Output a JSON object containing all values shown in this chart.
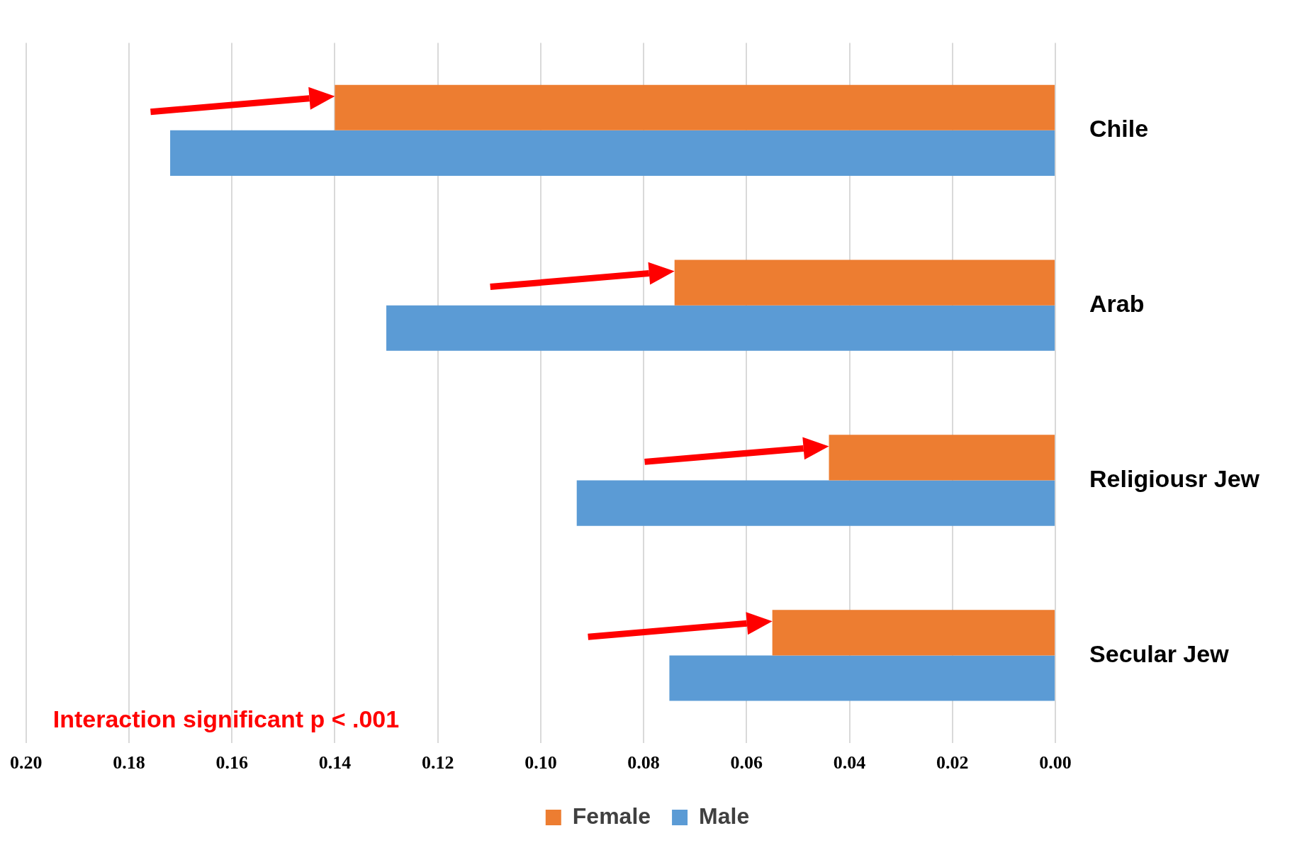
{
  "chart_data": {
    "type": "bar",
    "orientation": "horizontal",
    "categories": [
      "Chile",
      "Arab",
      "Religiousr Jew",
      "Secular Jew"
    ],
    "series": [
      {
        "name": "Female",
        "color": "#ed7d31",
        "values": [
          0.14,
          0.074,
          0.044,
          0.055
        ]
      },
      {
        "name": "Male",
        "color": "#5b9bd5",
        "values": [
          0.172,
          0.13,
          0.093,
          0.075
        ]
      }
    ],
    "xlim": [
      0.2,
      0
    ],
    "xticks": [
      {
        "value": 0.2,
        "label": "0.20"
      },
      {
        "value": 0.18,
        "label": "0.18"
      },
      {
        "value": 0.16,
        "label": "0.16"
      },
      {
        "value": 0.14,
        "label": "0.14"
      },
      {
        "value": 0.12,
        "label": "0.12"
      },
      {
        "value": 0.1,
        "label": "0.10"
      },
      {
        "value": 0.08,
        "label": "0.08"
      },
      {
        "value": 0.06,
        "label": "0.06"
      },
      {
        "value": 0.04,
        "label": "0.04"
      },
      {
        "value": 0.02,
        "label": "0.02"
      },
      {
        "value": 0,
        "label": "0.00"
      }
    ],
    "grid": "x",
    "legend": "bottom",
    "annotations": [
      "Interaction significant p < .001"
    ]
  }
}
